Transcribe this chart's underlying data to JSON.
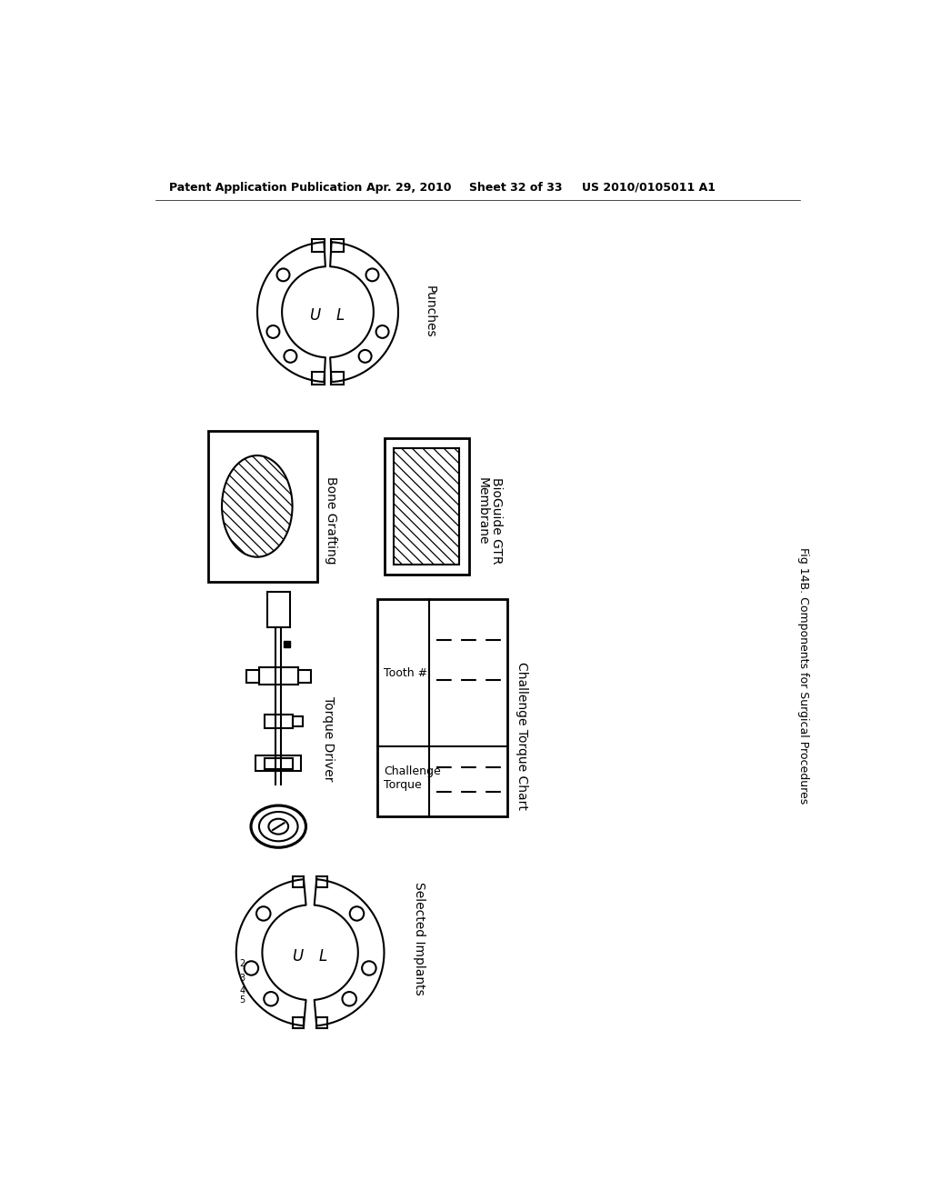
{
  "bg_color": "#ffffff",
  "header_text": "Patent Application Publication",
  "header_date": "Apr. 29, 2010",
  "header_sheet": "Sheet 32 of 33",
  "header_patent": "US 2010/0105011 A1",
  "fig_label": "Fig 14B. Components for Surgical Procedures",
  "punches_label": "Punches",
  "bone_grafting_label": "Bone Grafting",
  "bioguide_label": "BioGuide GTR\nMembrane",
  "torque_driver_label": "Torque Driver",
  "challenge_torque_label": "Challenge Torque Chart",
  "selected_implants_label": "Selected Implants",
  "tooth_label": "Tooth #",
  "challenge_torque_row_label": "Challenge\nTorque"
}
